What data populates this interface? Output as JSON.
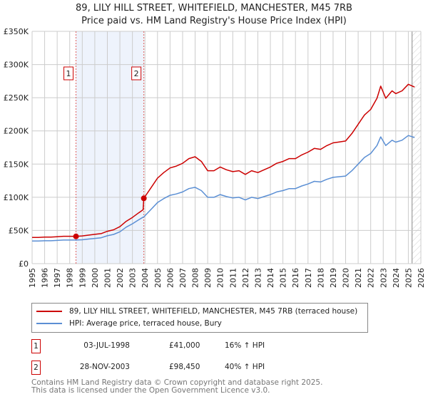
{
  "chart_data": {
    "type": "line",
    "title": "89, LILY HILL STREET, WHITEFIELD, MANCHESTER, M45 7RB",
    "subtitle": "Price paid vs. HM Land Registry's House Price Index (HPI)",
    "xlim": [
      1995,
      2026
    ],
    "ylim": [
      0,
      350000
    ],
    "x_ticks": [
      "1995",
      "1996",
      "1997",
      "1998",
      "1999",
      "2000",
      "2001",
      "2002",
      "2003",
      "2004",
      "2005",
      "2006",
      "2007",
      "2008",
      "2009",
      "2010",
      "2011",
      "2012",
      "2013",
      "2014",
      "2015",
      "2016",
      "2017",
      "2018",
      "2019",
      "2020",
      "2021",
      "2022",
      "2023",
      "2024",
      "2025",
      "2026"
    ],
    "y_ticks": [
      {
        "v": 0,
        "label": "£0"
      },
      {
        "v": 50000,
        "label": "£50K"
      },
      {
        "v": 100000,
        "label": "£100K"
      },
      {
        "v": 150000,
        "label": "£150K"
      },
      {
        "v": 200000,
        "label": "£200K"
      },
      {
        "v": 250000,
        "label": "£250K"
      },
      {
        "v": 300000,
        "label": "£300K"
      },
      {
        "v": 350000,
        "label": "£350K"
      }
    ],
    "grid": true,
    "shaded_period": [
      1998.5,
      2003.91
    ],
    "forecast_hatch_from": 2025.3,
    "x": [
      1995,
      1995.5,
      1996,
      1996.5,
      1997,
      1997.5,
      1998,
      1998.5,
      1999,
      1999.5,
      2000,
      2000.5,
      2001,
      2001.5,
      2002,
      2002.5,
      2003,
      2003.5,
      2003.85,
      2003.91,
      2004.5,
      2005,
      2005.5,
      2006,
      2006.5,
      2007,
      2007.5,
      2008,
      2008.5,
      2009,
      2009.5,
      2010,
      2010.5,
      2011,
      2011.5,
      2012,
      2012.5,
      2013,
      2013.5,
      2014,
      2014.5,
      2015,
      2015.5,
      2016,
      2016.5,
      2017,
      2017.5,
      2018,
      2018.5,
      2019,
      2019.5,
      2020,
      2020.5,
      2021,
      2021.5,
      2022,
      2022.5,
      2022.8,
      2023.2,
      2023.7,
      2024,
      2024.5,
      2025,
      2025.5
    ],
    "series": [
      {
        "name": "89, LILY HILL STREET, WHITEFIELD, MANCHESTER, M45 7RB (terraced house)",
        "color": "#cc0000",
        "values": [
          39400,
          39400,
          40000,
          40000,
          40600,
          41200,
          41200,
          41000,
          41800,
          42900,
          44100,
          45200,
          48700,
          51000,
          55700,
          63800,
          69600,
          76600,
          81200,
          98450,
          114800,
          128800,
          137200,
          144200,
          147000,
          151200,
          158200,
          161000,
          154000,
          140000,
          140000,
          145600,
          141400,
          138600,
          140000,
          134400,
          140000,
          137200,
          141400,
          145600,
          151200,
          154000,
          158200,
          158200,
          163800,
          168000,
          173600,
          172200,
          177800,
          182000,
          183400,
          184800,
          196000,
          210000,
          224000,
          232400,
          249200,
          267400,
          249200,
          260400,
          256200,
          260400,
          270200,
          266000
        ]
      },
      {
        "name": "HPI: Average price, terraced house, Bury",
        "color": "#5b8fd4",
        "values": [
          34000,
          34000,
          34500,
          34500,
          35000,
          35500,
          35500,
          35500,
          36000,
          37000,
          38000,
          39000,
          42000,
          44000,
          48000,
          55000,
          60000,
          66000,
          70000,
          70300,
          82000,
          92000,
          98000,
          103000,
          105000,
          108000,
          113000,
          115000,
          110000,
          100000,
          100000,
          104000,
          101000,
          99000,
          100000,
          96000,
          100000,
          98000,
          101000,
          104000,
          108000,
          110000,
          113000,
          113000,
          117000,
          120000,
          124000,
          123000,
          127000,
          130000,
          131000,
          132000,
          140000,
          150000,
          160000,
          166000,
          178000,
          191000,
          178000,
          186000,
          183000,
          186000,
          193000,
          190000
        ]
      }
    ],
    "sales": [
      {
        "label": "1",
        "x": 1998.5,
        "price": 41000
      },
      {
        "label": "2",
        "x": 2003.91,
        "price": 98450
      }
    ]
  },
  "legend": {
    "property": "89, LILY HILL STREET, WHITEFIELD, MANCHESTER, M45 7RB (terraced house)",
    "hpi": "HPI: Average price, terraced house, Bury"
  },
  "transactions": [
    {
      "num": "1",
      "date": "03-JUL-1998",
      "price": "£41,000",
      "hpi": "16% ↑ HPI"
    },
    {
      "num": "2",
      "date": "28-NOV-2003",
      "price": "£98,450",
      "hpi": "40% ↑ HPI"
    }
  ],
  "footer": {
    "line1": "Contains HM Land Registry data © Crown copyright and database right 2025.",
    "line2": "This data is licensed under the Open Government Licence v3.0."
  }
}
